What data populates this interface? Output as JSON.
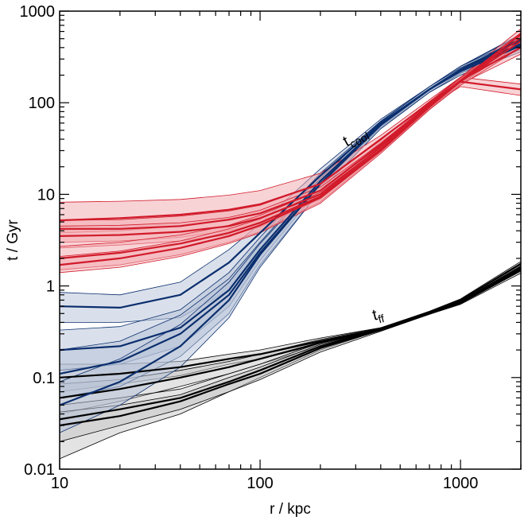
{
  "chart_data": {
    "type": "line",
    "xlabel": "r / kpc",
    "ylabel": "t / Gyr",
    "xscale": "log",
    "yscale": "log",
    "xlim": [
      10,
      2000
    ],
    "ylim": [
      0.01,
      1000
    ],
    "grid": false,
    "x_ticks": [
      {
        "value": 10,
        "label": "10"
      },
      {
        "value": 100,
        "label": "100"
      },
      {
        "value": 1000,
        "label": "1000"
      }
    ],
    "y_ticks": [
      {
        "value": 0.01,
        "label": "0.01"
      },
      {
        "value": 0.1,
        "label": "0.1"
      },
      {
        "value": 1,
        "label": "1"
      },
      {
        "value": 10,
        "label": "10"
      },
      {
        "value": 100,
        "label": "100"
      },
      {
        "value": 1000,
        "label": "1000"
      }
    ],
    "annotations": [
      {
        "group": "cool",
        "main": "t",
        "sub": "cool",
        "x": 270,
        "y": 33
      },
      {
        "group": "ff",
        "main": "t",
        "sub": "ff",
        "x": 370,
        "y": 0.42
      }
    ],
    "colors": {
      "cool": "#d11a2a",
      "cool_fill": "#f2a7ae",
      "blue": "#0b2f6e",
      "blue_fill": "#b5c2d8",
      "ff": "#000000",
      "ff_fill": "#c0c0c0"
    },
    "x": [
      10,
      20,
      40,
      70,
      100,
      200,
      400,
      700,
      1000,
      2000
    ],
    "series": [
      {
        "group": "ff",
        "values": [
          0.1,
          0.11,
          0.13,
          0.16,
          0.18,
          0.25,
          0.34,
          0.5,
          0.65,
          1.5
        ],
        "lower": [
          0.07,
          0.085,
          0.105,
          0.14,
          0.16,
          0.23,
          0.33,
          0.49,
          0.63,
          1.38
        ],
        "upper": [
          0.14,
          0.14,
          0.15,
          0.18,
          0.2,
          0.27,
          0.35,
          0.51,
          0.67,
          1.55
        ]
      },
      {
        "group": "ff",
        "values": [
          0.06,
          0.075,
          0.1,
          0.13,
          0.16,
          0.24,
          0.34,
          0.51,
          0.67,
          1.6
        ],
        "lower": [
          0.04,
          0.055,
          0.08,
          0.11,
          0.14,
          0.22,
          0.33,
          0.5,
          0.65,
          1.5
        ],
        "upper": [
          0.085,
          0.095,
          0.12,
          0.15,
          0.18,
          0.26,
          0.35,
          0.52,
          0.69,
          1.7
        ]
      },
      {
        "group": "ff",
        "values": [
          0.035,
          0.045,
          0.06,
          0.09,
          0.12,
          0.22,
          0.34,
          0.52,
          0.7,
          1.75
        ],
        "lower": [
          0.013,
          0.025,
          0.04,
          0.07,
          0.1,
          0.2,
          0.33,
          0.51,
          0.68,
          1.65
        ],
        "upper": [
          0.05,
          0.06,
          0.075,
          0.11,
          0.14,
          0.24,
          0.35,
          0.53,
          0.72,
          1.85
        ]
      },
      {
        "group": "ff",
        "values": [
          0.03,
          0.038,
          0.055,
          0.085,
          0.11,
          0.21,
          0.33,
          0.5,
          0.66,
          1.55
        ],
        "lower": [
          0.02,
          0.03,
          0.045,
          0.07,
          0.095,
          0.19,
          0.32,
          0.49,
          0.64,
          1.45
        ],
        "upper": [
          0.042,
          0.05,
          0.065,
          0.1,
          0.13,
          0.23,
          0.34,
          0.51,
          0.68,
          1.6
        ]
      },
      {
        "group": "blue",
        "values": [
          0.6,
          0.58,
          0.8,
          1.8,
          3.8,
          16,
          60,
          140,
          230,
          500
        ],
        "lower": [
          0.4,
          0.4,
          0.45,
          0.9,
          2.5,
          13,
          55,
          130,
          210,
          420
        ],
        "upper": [
          0.85,
          0.8,
          1.1,
          2.5,
          4.8,
          19,
          66,
          150,
          250,
          560
        ]
      },
      {
        "group": "blue",
        "values": [
          0.2,
          0.22,
          0.35,
          0.9,
          2.5,
          14,
          58,
          140,
          230,
          480
        ],
        "lower": [
          0.12,
          0.14,
          0.22,
          0.6,
          1.9,
          12,
          54,
          130,
          210,
          400
        ],
        "upper": [
          0.33,
          0.36,
          0.55,
          1.4,
          3.4,
          17,
          63,
          150,
          250,
          540
        ]
      },
      {
        "group": "blue",
        "values": [
          0.11,
          0.15,
          0.3,
          0.8,
          2.3,
          13,
          57,
          140,
          230,
          440
        ],
        "lower": [
          0.06,
          0.08,
          0.17,
          0.5,
          1.7,
          11,
          52,
          130,
          210,
          380
        ],
        "upper": [
          0.2,
          0.25,
          0.48,
          1.2,
          3.0,
          16,
          62,
          150,
          250,
          500
        ]
      },
      {
        "group": "blue",
        "values": [
          0.05,
          0.09,
          0.22,
          0.7,
          2.2,
          13,
          57,
          140,
          220,
          420
        ],
        "lower": [
          0.025,
          0.05,
          0.13,
          0.45,
          1.6,
          11,
          52,
          130,
          200,
          360
        ],
        "upper": [
          0.09,
          0.16,
          0.38,
          1.1,
          2.9,
          15,
          62,
          150,
          240,
          480
        ]
      },
      {
        "group": "cool",
        "values": [
          5.2,
          5.5,
          6.0,
          6.8,
          7.8,
          13,
          40,
          100,
          170,
          140
        ],
        "lower": [
          3.8,
          4.0,
          4.5,
          5.2,
          6.2,
          11,
          37,
          92,
          150,
          120
        ],
        "upper": [
          8.2,
          8.4,
          8.8,
          9.8,
          11.0,
          17,
          44,
          108,
          190,
          160
        ]
      },
      {
        "group": "cool",
        "values": [
          4.2,
          4.2,
          4.5,
          5.3,
          6.2,
          11,
          35,
          95,
          175,
          400
        ],
        "lower": [
          3.0,
          3.1,
          3.4,
          4.0,
          4.8,
          9.5,
          32,
          88,
          160,
          340
        ],
        "upper": [
          5.2,
          5.3,
          5.8,
          6.6,
          7.6,
          13,
          39,
          103,
          190,
          470
        ]
      },
      {
        "group": "cool",
        "values": [
          3.5,
          3.6,
          3.9,
          4.5,
          5.5,
          10,
          33,
          93,
          175,
          560
        ],
        "lower": [
          2.6,
          2.8,
          3.1,
          3.6,
          4.4,
          8.8,
          30,
          86,
          160,
          480
        ],
        "upper": [
          4.5,
          4.6,
          4.9,
          5.6,
          6.7,
          12,
          36,
          100,
          190,
          640
        ]
      },
      {
        "group": "cool",
        "values": [
          2.0,
          2.3,
          2.9,
          3.8,
          4.9,
          9.5,
          31,
          92,
          175,
          510
        ],
        "lower": [
          1.5,
          1.7,
          2.2,
          3.0,
          3.9,
          8.3,
          29,
          85,
          160,
          440
        ],
        "upper": [
          2.7,
          3.0,
          3.6,
          4.6,
          5.9,
          11,
          34,
          99,
          190,
          580
        ]
      },
      {
        "group": "cool",
        "values": [
          1.7,
          2.0,
          2.6,
          3.5,
          4.6,
          9.2,
          30,
          90,
          170,
          470
        ],
        "lower": [
          1.4,
          1.6,
          2.1,
          2.9,
          3.8,
          8.0,
          28,
          84,
          155,
          400
        ],
        "upper": [
          2.1,
          2.4,
          3.1,
          4.2,
          5.4,
          10.5,
          33,
          97,
          185,
          540
        ]
      }
    ]
  }
}
